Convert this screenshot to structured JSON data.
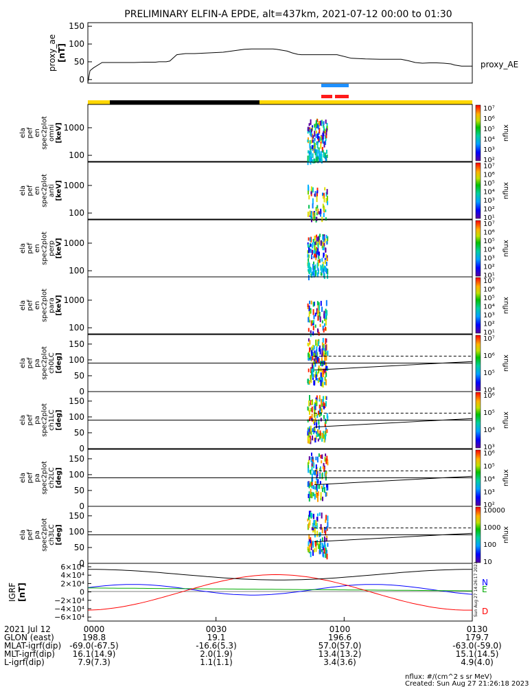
{
  "title": "PRELIMINARY ELFIN-A EPDE, alt=437km, 2021-07-12 00:00 to 01:30",
  "chart_data": [
    {
      "type": "line",
      "id": "proxy_ae",
      "ylabel": [
        "proxy_ae",
        "[nT]"
      ],
      "series_label": "proxy_AE",
      "ylim": [
        -10,
        160
      ],
      "yticks": [
        0,
        50,
        100,
        150
      ],
      "x": [
        0,
        3,
        8,
        20,
        60,
        65,
        80,
        90,
        95,
        100,
        110,
        115,
        125,
        137,
        150,
        170,
        180,
        190,
        220,
        230,
        240,
        250,
        260,
        265,
        280,
        287,
        295,
        300,
        310,
        320,
        330,
        340,
        350,
        370,
        390,
        410,
        420,
        440,
        450,
        460,
        470,
        480,
        490,
        500,
        510,
        515,
        525,
        540
      ],
      "y": [
        -8,
        25,
        33,
        48,
        48,
        48,
        49,
        49,
        49,
        50,
        50,
        52,
        70,
        73,
        73,
        75,
        76,
        77,
        85,
        86,
        86,
        86,
        86,
        85,
        80,
        75,
        71,
        70,
        70,
        70,
        70,
        70,
        70,
        60,
        58,
        57,
        57,
        57,
        53,
        48,
        46,
        47,
        47,
        46,
        44,
        41,
        38,
        38
      ]
    },
    {
      "type": "heatmap",
      "id": "ela_pef_en_spec2plot_omni",
      "ylabel": [
        "ela",
        "pef",
        "en",
        "spec2plot",
        "omni",
        "[keV]"
      ],
      "yscale": "log",
      "yticks": [
        100,
        1000
      ],
      "ylim": [
        60,
        7000
      ],
      "zlabel": "nflux",
      "zlim": [
        100,
        10000000
      ],
      "zticks": [
        "10⁷",
        "10⁶",
        "10⁵",
        "10⁴",
        "10³",
        "10²"
      ]
    },
    {
      "type": "heatmap",
      "id": "ela_pef_en_spec2plot_anti",
      "ylabel": [
        "ela",
        "pef",
        "en",
        "spec2plot",
        "anti",
        "[keV]"
      ],
      "yscale": "log",
      "yticks": [
        100,
        1000
      ],
      "ylim": [
        60,
        7000
      ],
      "zlabel": "nflux",
      "zlim": [
        10,
        10000000
      ],
      "zticks": [
        "10⁷",
        "10⁶",
        "10⁵",
        "10⁴",
        "10³",
        "10²",
        "10¹"
      ]
    },
    {
      "type": "heatmap",
      "id": "ela_pef_en_spec2plot_perp",
      "ylabel": [
        "ela",
        "pef",
        "en",
        "spec2plot",
        "perp",
        "[keV]"
      ],
      "yscale": "log",
      "yticks": [
        100,
        1000
      ],
      "ylim": [
        60,
        7000
      ],
      "zlabel": "nflux",
      "zlim": [
        10,
        10000000
      ],
      "zticks": [
        "10⁷",
        "10⁶",
        "10⁵",
        "10⁴",
        "10³",
        "10²",
        "10¹"
      ]
    },
    {
      "type": "heatmap",
      "id": "ela_pef_en_spec2plot_para",
      "ylabel": [
        "ela",
        "pef",
        "en",
        "spec2plot",
        "para",
        "[keV]"
      ],
      "yscale": "log",
      "yticks": [
        100,
        1000
      ],
      "ylim": [
        60,
        7000
      ],
      "zlabel": "nflux",
      "zlim": [
        10,
        10000000
      ],
      "zticks": [
        "10⁷",
        "10⁶",
        "10⁵",
        "10⁴",
        "10³",
        "10²",
        "10¹"
      ]
    },
    {
      "type": "heatmap",
      "id": "ela_pef_pa_spec2plot_ch0LC",
      "ylabel": [
        "ela",
        "pef",
        "pa",
        "spec2plot",
        "ch0LC",
        "[deg]"
      ],
      "yticks": [
        0,
        50,
        100,
        150
      ],
      "ylim": [
        0,
        180
      ],
      "zlabel": "nflux",
      "zticks": [
        "10⁷",
        "10⁶",
        "10⁵",
        "10⁴"
      ]
    },
    {
      "type": "heatmap",
      "id": "ela_pef_pa_spec2plot_ch1LC",
      "ylabel": [
        "ela",
        "pef",
        "pa",
        "spec2plot",
        "ch1LC",
        "[deg]"
      ],
      "yticks": [
        0,
        50,
        100,
        150
      ],
      "ylim": [
        0,
        180
      ],
      "zlabel": "nflux",
      "zticks": [
        "10⁶",
        "10⁵",
        "10⁴",
        "10³"
      ]
    },
    {
      "type": "heatmap",
      "id": "ela_pef_pa_spec2plot_ch2LC",
      "ylabel": [
        "ela",
        "pef",
        "pa",
        "spec2plot",
        "ch2LC",
        "[deg]"
      ],
      "yticks": [
        0,
        50,
        100,
        150
      ],
      "ylim": [
        0,
        180
      ],
      "zlabel": "nflux",
      "zticks": [
        "10⁶",
        "10⁵",
        "10⁴",
        "10³",
        "10²"
      ]
    },
    {
      "type": "heatmap",
      "id": "ela_pef_pa_spec2plot_ch3LC",
      "ylabel": [
        "ela",
        "pef",
        "pa",
        "spec2plot",
        "ch3LC",
        "[deg]"
      ],
      "yticks": [
        0,
        50,
        100,
        150
      ],
      "ylim": [
        0,
        180
      ],
      "zlabel": "nflux",
      "zticks": [
        "10000",
        "1000",
        "100",
        "10"
      ]
    },
    {
      "type": "line",
      "id": "igrf",
      "ylabel": [
        "IGRF",
        "[nT]"
      ],
      "ylim": [
        -65000,
        65000
      ],
      "yticks": [
        "6×10⁴",
        "4×10⁴",
        "2×10⁴",
        "0",
        "−2×10⁴",
        "−4×10⁴",
        "−6×10⁴"
      ],
      "series": [
        {
          "name": "N",
          "color": "#0000ff"
        },
        {
          "name": "E",
          "color": "#00aa00"
        },
        {
          "name": "D",
          "color": "#ff0000"
        },
        {
          "name": "",
          "color": "#000000"
        }
      ]
    }
  ],
  "time_axis": {
    "ticks": [
      "0000",
      "0030",
      "0100",
      "0130"
    ],
    "rows": [
      {
        "label": "2021 Jul 12",
        "values": [
          "0000",
          "0030",
          "0100",
          "0130"
        ]
      },
      {
        "label": "GLON (east)",
        "values": [
          "198.8",
          "19.1",
          "196.6",
          "179.7"
        ]
      },
      {
        "label": "MLAT-igrf(dip)",
        "values": [
          "-69.0(-67.5)",
          "-16.6(5.3)",
          "57.0(57.0)",
          "-63.0(-59.0)"
        ]
      },
      {
        "label": "MLT-igrf(dip)",
        "values": [
          "16.1(14.9)",
          "2.0(1.9)",
          "13.4(13.2)",
          "15.1(14.5)"
        ]
      },
      {
        "label": "L-igrf(dip)",
        "values": [
          "7.9(7.3)",
          "1.1(1.1)",
          "3.4(3.6)",
          "4.9(4.0)"
        ]
      }
    ]
  },
  "footer": {
    "units": "nflux: #/(cm^2 s sr MeV)",
    "created": "Created: Sun Aug 27 21:26:18 2023",
    "side_stamp": "Sun Aug 27 14:26:17 2023"
  },
  "colors": {
    "blue_bar": "#1e90ff",
    "red_bar": "#ff1a1a",
    "yellow_bar": "#ffd700",
    "black_bar": "#000000"
  }
}
